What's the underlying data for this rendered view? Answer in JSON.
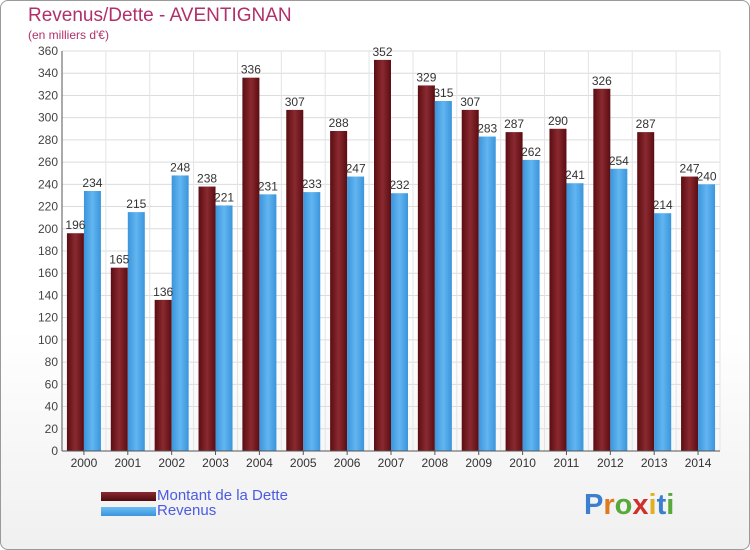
{
  "header": {
    "title": "Revenus/Dette - AVENTIGNAN",
    "subtitle": "(en milliers d'€)"
  },
  "legend": [
    {
      "label": "Montant de la Dette",
      "color": "#6b1a20"
    },
    {
      "label": "Revenus",
      "color": "#4aa3e8"
    }
  ],
  "logo": {
    "text": "Proxiti"
  },
  "chart_data": {
    "type": "bar",
    "title": "Revenus/Dette - AVENTIGNAN",
    "subtitle": "(en milliers d'€)",
    "categories": [
      "2000",
      "2001",
      "2002",
      "2003",
      "2004",
      "2005",
      "2006",
      "2007",
      "2008",
      "2009",
      "2010",
      "2011",
      "2012",
      "2013",
      "2014"
    ],
    "series": [
      {
        "name": "Montant de la Dette",
        "color": "#6b1a20",
        "values": [
          196,
          165,
          136,
          238,
          336,
          307,
          288,
          352,
          329,
          307,
          287,
          290,
          326,
          287,
          247
        ]
      },
      {
        "name": "Revenus",
        "color": "#4aa3e8",
        "values": [
          234,
          215,
          248,
          221,
          231,
          233,
          247,
          232,
          315,
          283,
          262,
          241,
          254,
          214,
          240
        ]
      }
    ],
    "ylim": [
      0,
      360
    ],
    "ytick_step": 20,
    "grid": true,
    "legend_position": "bottom-left"
  }
}
